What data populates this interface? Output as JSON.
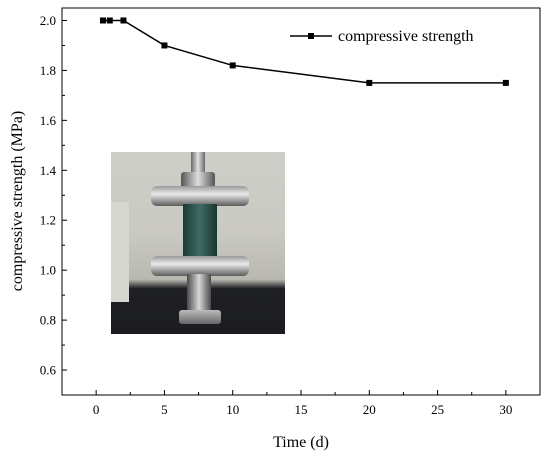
{
  "chart_data": {
    "type": "line",
    "title": "",
    "xlabel": "Time (d)",
    "ylabel": "compressive  strength (MPa)",
    "xlim": [
      -2.5,
      32.5
    ],
    "ylim": [
      0.5,
      2.05
    ],
    "xticks": [
      0,
      5,
      10,
      15,
      20,
      25,
      30
    ],
    "yticks": [
      0.6,
      0.8,
      1.0,
      1.2,
      1.4,
      1.6,
      1.8,
      2.0
    ],
    "xtick_labels": [
      "0",
      "5",
      "10",
      "15",
      "20",
      "25",
      "30"
    ],
    "ytick_labels": [
      "0.6",
      "0.8",
      "1.0",
      "1.2",
      "1.4",
      "1.6",
      "1.8",
      "2.0"
    ],
    "legend_position": "top-right",
    "grid": false,
    "series": [
      {
        "name": "compressive  strength",
        "color": "#000000",
        "marker": "square",
        "x": [
          0.5,
          1,
          2,
          5,
          10,
          20,
          30
        ],
        "y": [
          2.0,
          2.0,
          2.0,
          1.9,
          1.82,
          1.75,
          1.75
        ]
      }
    ]
  },
  "inset_photo": {
    "description_icon": "compression-test-specimen-photo"
  }
}
